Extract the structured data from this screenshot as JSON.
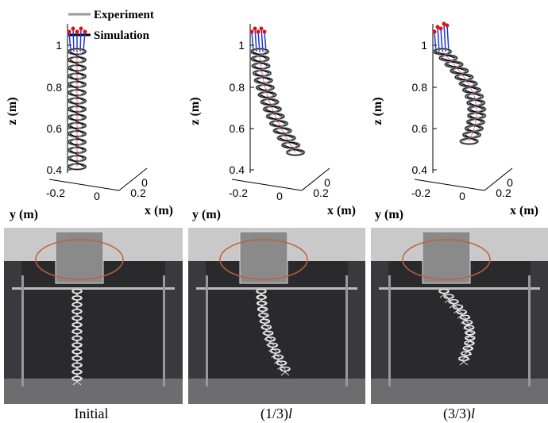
{
  "legend": [
    "Experiment",
    "Simulation"
  ],
  "panels": [
    {
      "z_label": "z (m)",
      "y_label": "y (m)",
      "x_label": "x (m)",
      "z_ticks": [
        "1",
        "0.8",
        "0.6",
        "0.4"
      ],
      "y_ticks": [
        "-0.2",
        "0"
      ],
      "x_ticks": [
        "0",
        "0.2"
      ],
      "caption": [
        "Initial"
      ]
    },
    {
      "z_label": "z (m)",
      "y_label": "y (m)",
      "x_label": "x (m)",
      "z_ticks": [
        "1",
        "0.8",
        "0.6",
        "0.4"
      ],
      "y_ticks": [
        "-0.2",
        "0"
      ],
      "x_ticks": [
        "0",
        "0.2"
      ],
      "caption": [
        "(1/3)",
        "l"
      ]
    },
    {
      "z_label": "z (m)",
      "y_label": "y (m)",
      "x_label": "x (m)",
      "z_ticks": [
        "1",
        "0.8",
        "0.6",
        "0.4"
      ],
      "y_ticks": [
        "-0.2",
        "0"
      ],
      "x_ticks": [
        "0",
        "0.2"
      ],
      "caption": [
        "(3/3)",
        "l"
      ]
    }
  ]
}
